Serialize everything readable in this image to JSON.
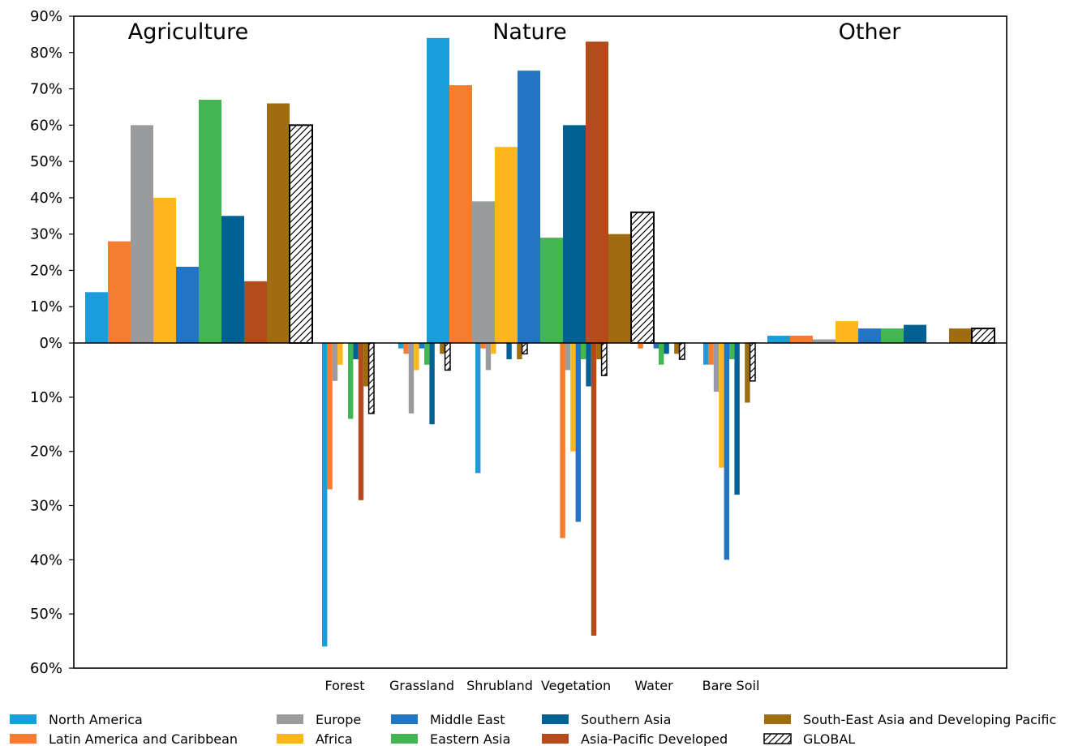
{
  "chart_data": {
    "type": "bar",
    "top_panel": {
      "groups": [
        "Agriculture",
        "Nature",
        "Other"
      ],
      "ylim": [
        0,
        90
      ],
      "yticks": [
        "0%",
        "10%",
        "20%",
        "30%",
        "40%",
        "50%",
        "60%",
        "70%",
        "80%",
        "90%"
      ]
    },
    "bottom_panel": {
      "categories": [
        "Forest",
        "Grassland",
        "Shrubland",
        "Vegetation",
        "Water",
        "Bare Soil"
      ],
      "ylim": [
        60,
        0
      ],
      "yticks": [
        "10%",
        "20%",
        "30%",
        "40%",
        "50%",
        "60%"
      ]
    },
    "series": [
      {
        "name": "North America",
        "color": "#1a9ed9",
        "top": [
          14,
          84,
          2
        ],
        "bottom": [
          56,
          1,
          24,
          0,
          0,
          4
        ]
      },
      {
        "name": "Latin America and Caribbean",
        "color": "#f47d2f",
        "top": [
          28,
          71,
          2
        ],
        "bottom": [
          27,
          2,
          1,
          36,
          1,
          4
        ]
      },
      {
        "name": "Europe",
        "color": "#999b9c",
        "top": [
          60,
          39,
          1
        ],
        "bottom": [
          7,
          13,
          5,
          5,
          0,
          9
        ]
      },
      {
        "name": "Africa",
        "color": "#fdb61e",
        "top": [
          40,
          54,
          6
        ],
        "bottom": [
          4,
          5,
          2,
          20,
          0,
          23
        ]
      },
      {
        "name": "Middle East",
        "color": "#2374c1",
        "top": [
          21,
          75,
          4
        ],
        "bottom": [
          0,
          1,
          0,
          33,
          1,
          40
        ]
      },
      {
        "name": "Eastern Asia",
        "color": "#43b653",
        "top": [
          67,
          29,
          4
        ],
        "bottom": [
          14,
          4,
          0,
          3,
          4,
          3
        ]
      },
      {
        "name": "Southern Asia",
        "color": "#016193",
        "top": [
          35,
          60,
          5
        ],
        "bottom": [
          3,
          15,
          3,
          8,
          2,
          28
        ]
      },
      {
        "name": "Asia-Pacific Developed",
        "color": "#b54b1a",
        "top": [
          17,
          83,
          0
        ],
        "bottom": [
          29,
          0,
          0,
          54,
          0,
          0
        ]
      },
      {
        "name": "South-East Asia and Developing Pacific",
        "color": "#a06c10",
        "top": [
          66,
          30,
          4
        ],
        "bottom": [
          8,
          2,
          3,
          3,
          2,
          11
        ]
      },
      {
        "name": "GLOBAL",
        "color": "#ffffff",
        "hatch": true,
        "top": [
          60,
          36,
          4
        ],
        "bottom": [
          13,
          5,
          2,
          6,
          3,
          7
        ]
      }
    ],
    "legend": {
      "placement": "bottom",
      "order": [
        0,
        1,
        2,
        3,
        4,
        5,
        6,
        7,
        8,
        9
      ]
    }
  }
}
